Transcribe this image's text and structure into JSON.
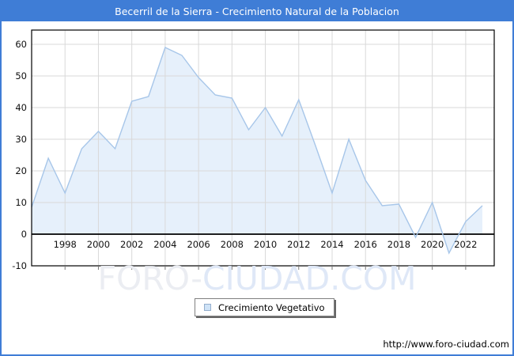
{
  "chart_data": {
    "type": "area",
    "title": "Becerril de la Sierra - Crecimiento Natural de la Poblacion",
    "series_name": "Crecimiento Vegetativo",
    "x": [
      1996,
      1997,
      1998,
      1999,
      2000,
      2001,
      2002,
      2003,
      2004,
      2005,
      2006,
      2007,
      2008,
      2009,
      2010,
      2011,
      2012,
      2013,
      2014,
      2015,
      2016,
      2017,
      2018,
      2019,
      2020,
      2021,
      2022,
      2023
    ],
    "values": [
      8.5,
      24,
      13,
      27,
      32.5,
      27,
      42,
      43.5,
      59,
      56.5,
      49.5,
      44,
      43,
      33,
      40,
      31,
      42.5,
      28,
      13,
      30,
      17,
      9,
      9.5,
      -1,
      10,
      -6,
      4,
      9
    ],
    "xticks": [
      1998,
      2000,
      2002,
      2004,
      2006,
      2008,
      2010,
      2012,
      2014,
      2016,
      2018,
      2020,
      2022
    ],
    "yticks": [
      -10,
      0,
      10,
      20,
      30,
      40,
      50,
      60
    ],
    "ylim": [
      -10,
      64.5
    ],
    "xlim": [
      1996,
      2023.7
    ],
    "grid": true,
    "legend_position": "bottom-center",
    "colors": {
      "title_bar": "#3f7dd6",
      "frame_border": "#3f7dd6",
      "area_fill": "#e6f0fb",
      "area_line": "#a7c6e9",
      "gridline": "#d9d9d9",
      "axis_line": "#000000",
      "zero_line": "#000000",
      "tick_mark": "#777777",
      "label_text": "#111111"
    }
  },
  "legend": {
    "label": "Crecimiento Vegetativo"
  },
  "watermark": {
    "part1": "FORO-",
    "part2": "CIUDAD.COM"
  },
  "footer": {
    "url": "http://www.foro-ciudad.com"
  }
}
